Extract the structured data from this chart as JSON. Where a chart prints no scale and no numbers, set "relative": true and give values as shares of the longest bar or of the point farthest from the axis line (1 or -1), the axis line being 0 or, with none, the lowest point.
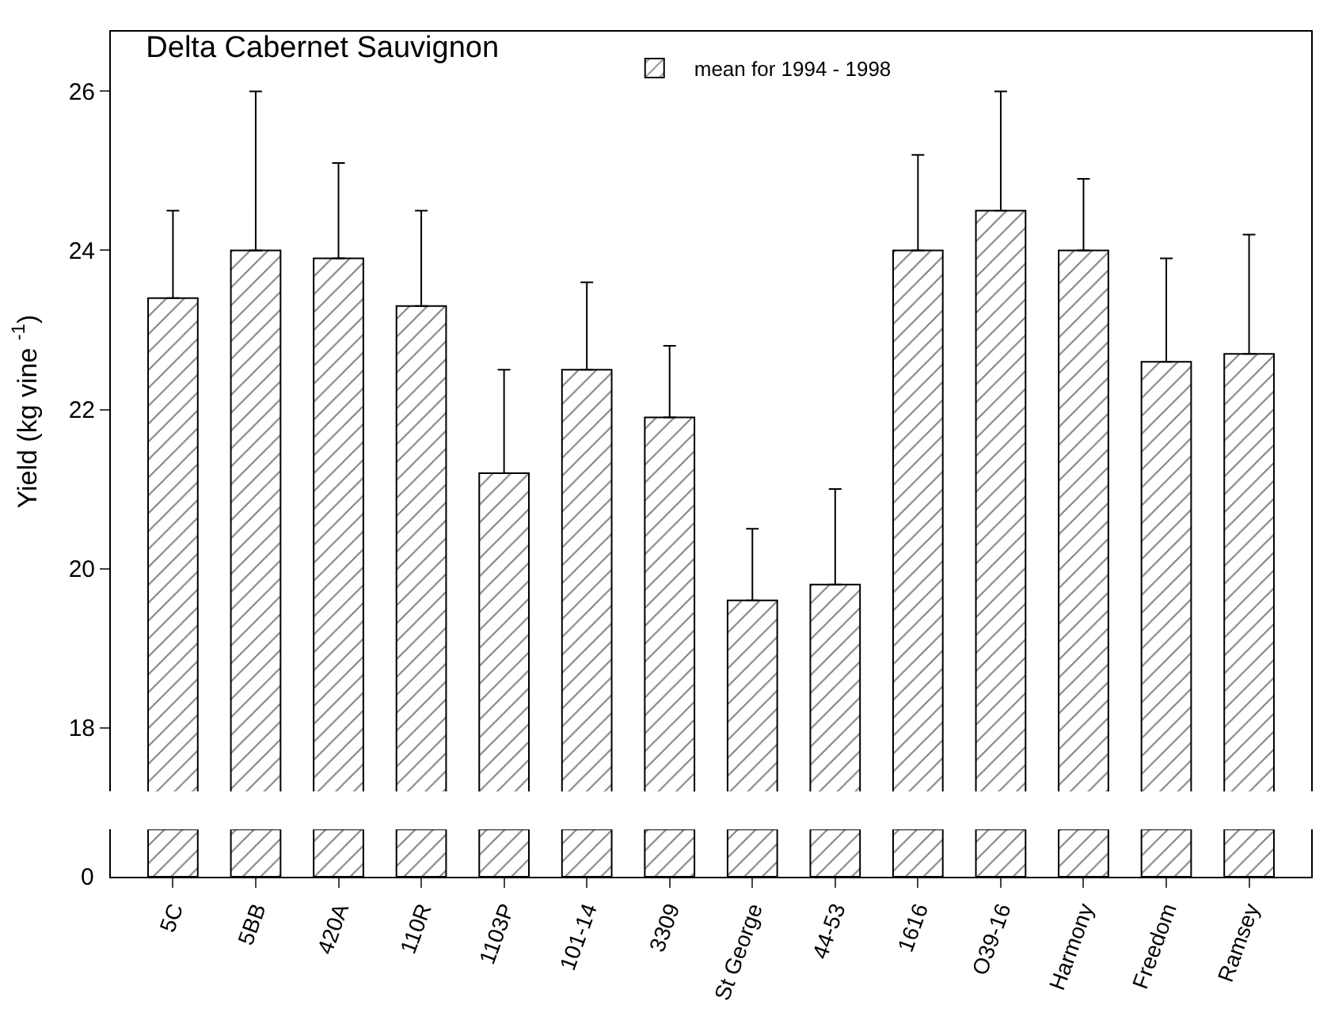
{
  "chart_data": [
    {
      "type": "bar",
      "title": "Delta Cabernet Sauvignon",
      "ylabel": "Yield (kg vine $^{-1}$)",
      "categories": [
        null,
        null,
        null,
        null,
        null,
        null,
        null,
        null,
        null,
        null,
        null,
        null,
        null,
        null
      ],
      "series": [
        {
          "name": "mean for 1994 - 1998",
          "color": "#000000",
          "values": [
            23.4,
            24.0,
            23.9,
            23.3,
            21.2,
            22.5,
            21.9,
            19.6,
            19.8,
            24.0,
            24.5,
            24.0,
            22.6,
            22.7
          ],
          "errors": [
            [
              23.4,
              24.5
            ],
            [
              24.0,
              26.0
            ],
            [
              23.9,
              25.1
            ],
            [
              23.3,
              24.5
            ],
            [
              21.2,
              22.5
            ],
            [
              22.5,
              23.6
            ],
            [
              21.9,
              22.8
            ],
            [
              19.6,
              20.5
            ],
            [
              19.8,
              21.0
            ],
            [
              24.0,
              25.2
            ],
            [
              24.5,
              26.0
            ],
            [
              24.0,
              24.9
            ],
            [
              22.6,
              23.9
            ],
            [
              22.7,
              24.2
            ]
          ]
        }
      ],
      "ylim": [
        17.2,
        26.75
      ],
      "yticks": [
        18,
        20,
        22,
        24,
        26
      ],
      "legend": "top",
      "tick_labels": "y"
    },
    {
      "type": "bar",
      "relative": true,
      "categories": [
        "5C",
        "5BB",
        "420A",
        "110R",
        "1103P",
        "101-14",
        "3309",
        "St George",
        "44-53",
        "1616",
        "O39-16",
        "Harmony",
        "Freedom",
        "Ramsey"
      ],
      "values": [
        1,
        1,
        1,
        1,
        1,
        1,
        1,
        1,
        1,
        1,
        1,
        1,
        1,
        1
      ],
      "color": "#000000",
      "annotations": [
        "0"
      ]
    }
  ]
}
